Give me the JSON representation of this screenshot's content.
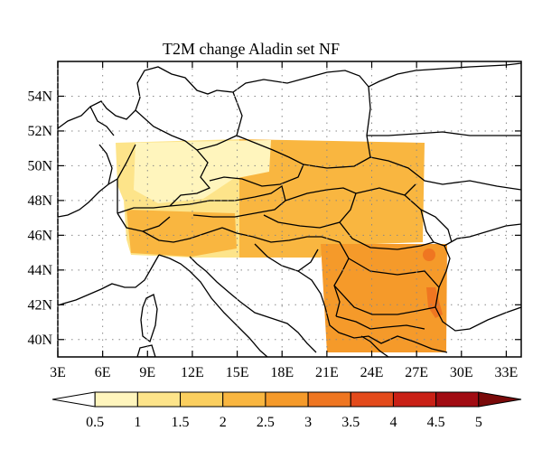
{
  "title": "T2M change Aladin set NF",
  "map": {
    "lat_labels": [
      "54N",
      "52N",
      "50N",
      "48N",
      "46N",
      "44N",
      "42N",
      "40N"
    ],
    "lon_labels": [
      "3E",
      "6E",
      "9E",
      "12E",
      "15E",
      "18E",
      "21E",
      "24E",
      "27E",
      "30E",
      "33E"
    ],
    "lon_range": [
      3,
      34
    ],
    "lat_range": [
      39,
      56
    ],
    "gridlines": "dotted"
  },
  "colorbar": {
    "labels": [
      "0.5",
      "1",
      "1.5",
      "2",
      "2.5",
      "3",
      "3.5",
      "4",
      "4.5",
      "5"
    ],
    "colors": [
      "#ffffff",
      "#fff5bd",
      "#fde48a",
      "#fbcf5f",
      "#f9b640",
      "#f59a2a",
      "#ef7621",
      "#e34a1b",
      "#c92016",
      "#a10b12",
      "#7a0a0a"
    ]
  },
  "field_colors": {
    "low": "#fde48a",
    "mid": "#fbcf5f",
    "high": "#f9b640",
    "higher": "#f59a2a",
    "peak": "#ef7621",
    "cool": "#fff5bd"
  }
}
